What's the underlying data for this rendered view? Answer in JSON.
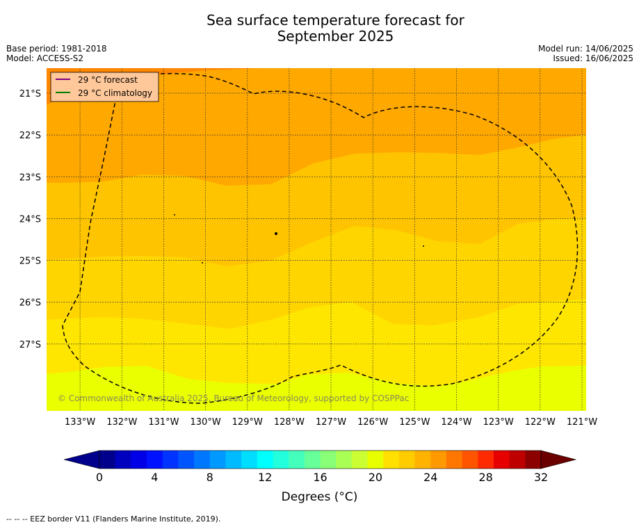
{
  "title_line1": "Sea surface temperature forecast for",
  "title_line2": "September 2025",
  "meta": {
    "base_period": "Base period: 1981-2018",
    "model": "Model: ACCESS-S2",
    "model_run": "Model run: 14/06/2025",
    "issued": "Issued: 16/06/2025"
  },
  "legend": {
    "forecast_label": "29 °C  forecast",
    "forecast_color": "#800080",
    "climatology_label": "29 °C  climatology",
    "climatology_color": "#008000"
  },
  "copyright": "© Commonwealth of Australia 2025, Bureau of Meteorology, supported by COSPPac",
  "colorbar": {
    "label": "Degrees (°C)",
    "ticks": [
      "0",
      "4",
      "8",
      "12",
      "16",
      "20",
      "24",
      "28",
      "32"
    ],
    "colors": [
      "#00008c",
      "#0000bf",
      "#0000e6",
      "#0011ff",
      "#0033ff",
      "#0055ff",
      "#0077ff",
      "#0099ff",
      "#00bbff",
      "#00ddff",
      "#00ffff",
      "#22ffdd",
      "#44ffbb",
      "#66ff99",
      "#88ff77",
      "#aaff55",
      "#ccff33",
      "#e8ff00",
      "#ffe000",
      "#ffcc00",
      "#ffb300",
      "#ff9900",
      "#ff7700",
      "#ff5500",
      "#ff2a00",
      "#e60000",
      "#bf0000",
      "#8c0000"
    ]
  },
  "footer": "-- -- -- EEZ border V11 (Flanders Marine Institute, 2019).",
  "chart_data": {
    "type": "heatmap",
    "x_ticks": [
      "133°W",
      "132°W",
      "131°W",
      "130°W",
      "129°W",
      "128°W",
      "127°W",
      "126°W",
      "125°W",
      "124°W",
      "123°W",
      "122°W",
      "121°W"
    ],
    "y_ticks": [
      "21°S",
      "22°S",
      "23°S",
      "24°S",
      "25°S",
      "26°S",
      "27°S"
    ],
    "xlim": [
      -133.8,
      -120.9
    ],
    "ylim": [
      -28.6,
      -20.4
    ],
    "contour_bands_degC": [
      {
        "range": "28-29",
        "color": "#ff9000"
      },
      {
        "range": "27-28",
        "color": "#ffa800"
      },
      {
        "range": "26-27",
        "color": "#ffc400"
      },
      {
        "range": "25-26",
        "color": "#ffd500"
      },
      {
        "range": "24-25",
        "color": "#ffe600"
      },
      {
        "range": "23-24",
        "color": "#eaff00"
      }
    ]
  }
}
